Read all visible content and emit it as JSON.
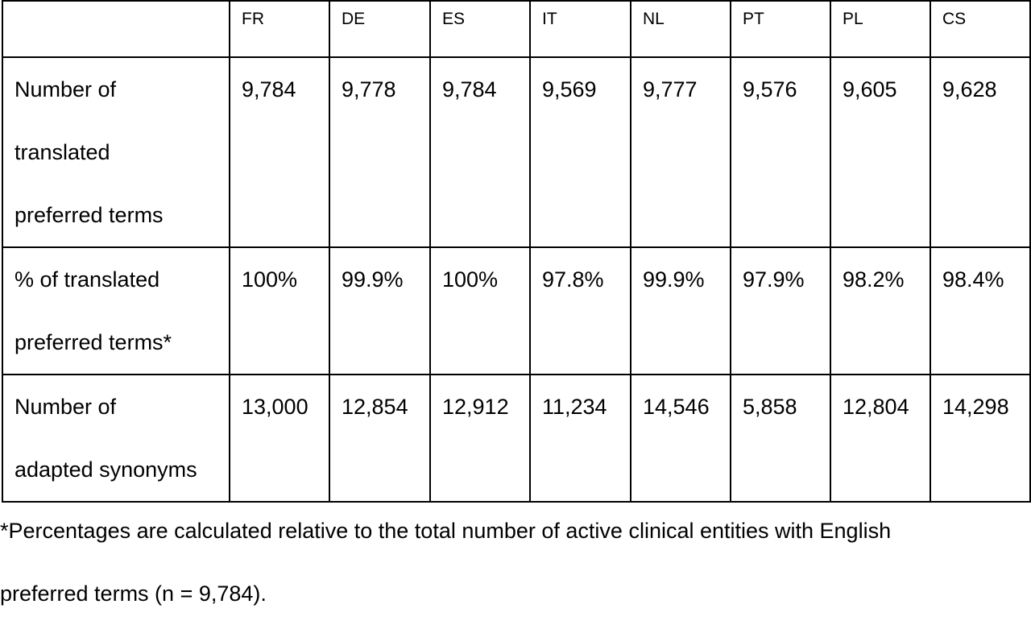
{
  "table": {
    "columns": [
      "",
      "FR",
      "DE",
      "ES",
      "IT",
      "NL",
      "PT",
      "PL",
      "CS"
    ],
    "rows": [
      {
        "label_lines": [
          "Number of",
          "translated",
          "preferred terms"
        ],
        "values": [
          "9,784",
          "9,778",
          "9,784",
          "9,569",
          "9,777",
          "9,576",
          "9,605",
          "9,628"
        ]
      },
      {
        "label_lines": [
          "% of translated",
          "preferred terms*"
        ],
        "values": [
          "100%",
          "99.9%",
          "100%",
          "97.8%",
          "99.9%",
          "97.9%",
          "98.2%",
          "98.4%"
        ]
      },
      {
        "label_lines": [
          "Number of",
          "adapted synonyms"
        ],
        "values": [
          "13,000",
          "12,854",
          "12,912",
          "11,234",
          "14,546",
          "5,858",
          "12,804",
          "14,298"
        ]
      }
    ]
  },
  "footnote": {
    "line1": "*Percentages are calculated relative to the total number of active clinical entities with English",
    "line2": "preferred terms (n = 9,784)."
  }
}
